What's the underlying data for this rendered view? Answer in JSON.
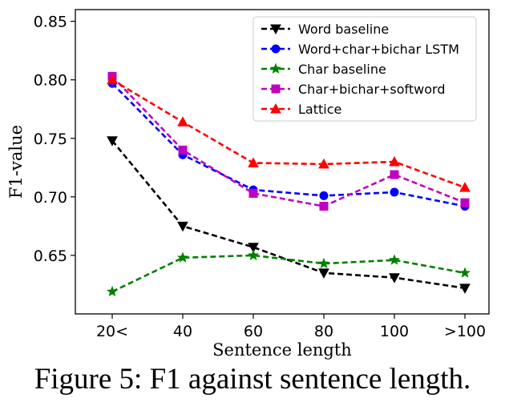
{
  "caption": "Figure 5: F1 against sentence length.",
  "chart_data": {
    "type": "line",
    "xlabel": "Sentence length",
    "ylabel": "F1-value",
    "categories": [
      "20<",
      "40",
      "60",
      "80",
      "100",
      ">100"
    ],
    "ylim": [
      0.6,
      0.86
    ],
    "yticks": [
      0.65,
      0.7,
      0.75,
      0.8,
      0.85
    ],
    "grid": false,
    "legend_position": "top-right",
    "series": [
      {
        "name": "Word baseline",
        "color": "#000000",
        "marker": "triangle-down",
        "values": [
          0.748,
          0.675,
          0.657,
          0.635,
          0.631,
          0.622
        ]
      },
      {
        "name": "Word+char+bichar LSTM",
        "color": "#0000ff",
        "marker": "circle",
        "values": [
          0.797,
          0.736,
          0.706,
          0.701,
          0.704,
          0.692
        ]
      },
      {
        "name": "Char baseline",
        "color": "#008000",
        "marker": "star",
        "values": [
          0.619,
          0.648,
          0.65,
          0.643,
          0.646,
          0.635
        ]
      },
      {
        "name": "Char+bichar+softword",
        "color": "#c000c0",
        "marker": "square",
        "values": [
          0.803,
          0.74,
          0.703,
          0.692,
          0.719,
          0.695
        ]
      },
      {
        "name": "Lattice",
        "color": "#ff0000",
        "marker": "triangle-up",
        "values": [
          0.8,
          0.764,
          0.729,
          0.728,
          0.73,
          0.708
        ]
      }
    ]
  }
}
